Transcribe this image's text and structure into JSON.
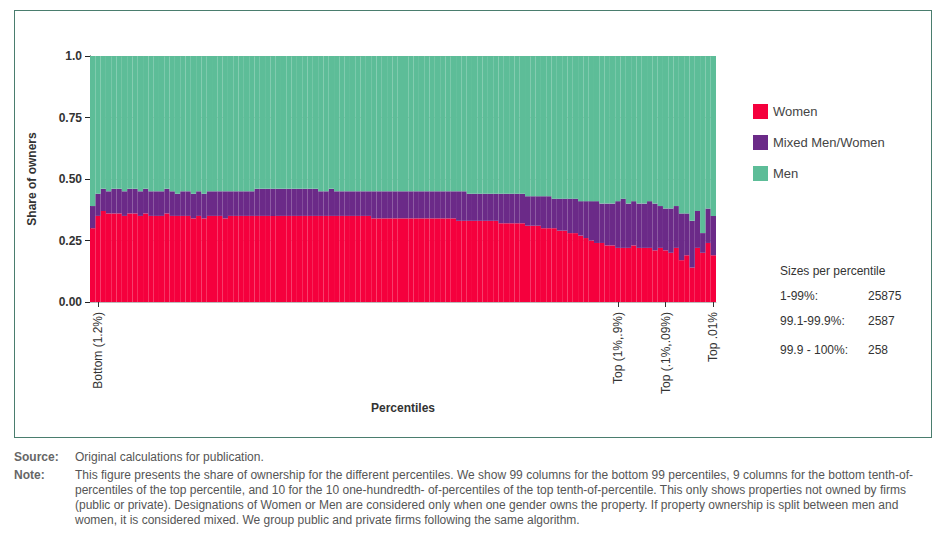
{
  "chart_data": {
    "type": "bar",
    "stacked": true,
    "y_label": "Share of owners",
    "x_label": "Percentiles",
    "categories": [
      null,
      "Bottom (1.2%)",
      null,
      null,
      null,
      null,
      null,
      null,
      null,
      null,
      null,
      null,
      null,
      null,
      null,
      null,
      null,
      null,
      null,
      null,
      null,
      null,
      null,
      null,
      null,
      null,
      null,
      null,
      null,
      null,
      null,
      null,
      null,
      null,
      null,
      null,
      null,
      null,
      null,
      null,
      null,
      null,
      null,
      null,
      null,
      null,
      null,
      null,
      null,
      null,
      null,
      null,
      null,
      null,
      null,
      null,
      null,
      null,
      null,
      null,
      null,
      null,
      null,
      null,
      null,
      null,
      null,
      null,
      null,
      null,
      null,
      null,
      null,
      null,
      null,
      null,
      null,
      null,
      null,
      null,
      null,
      null,
      null,
      null,
      null,
      null,
      null,
      null,
      null,
      null,
      null,
      null,
      null,
      null,
      null,
      null,
      null,
      null,
      null,
      "Top (1%,.9%)",
      null,
      null,
      null,
      null,
      null,
      null,
      null,
      null,
      "Top (.1%,.09%)",
      null,
      null,
      null,
      null,
      null,
      null,
      null,
      null,
      "Top .01%"
    ],
    "series": [
      {
        "name": "Women",
        "color": "#f5003d",
        "values": [
          0.3,
          0.35,
          0.37,
          0.36,
          0.36,
          0.36,
          0.35,
          0.36,
          0.36,
          0.35,
          0.36,
          0.35,
          0.35,
          0.35,
          0.36,
          0.35,
          0.35,
          0.35,
          0.35,
          0.34,
          0.35,
          0.34,
          0.35,
          0.35,
          0.35,
          0.34,
          0.35,
          0.35,
          0.35,
          0.35,
          0.35,
          0.35,
          0.35,
          0.35,
          0.35,
          0.35,
          0.35,
          0.35,
          0.35,
          0.35,
          0.35,
          0.35,
          0.35,
          0.35,
          0.35,
          0.35,
          0.35,
          0.35,
          0.35,
          0.35,
          0.35,
          0.35,
          0.35,
          0.34,
          0.34,
          0.34,
          0.34,
          0.34,
          0.34,
          0.34,
          0.34,
          0.34,
          0.34,
          0.34,
          0.34,
          0.34,
          0.34,
          0.34,
          0.34,
          0.33,
          0.33,
          0.33,
          0.33,
          0.33,
          0.33,
          0.33,
          0.33,
          0.32,
          0.32,
          0.32,
          0.32,
          0.32,
          0.31,
          0.31,
          0.31,
          0.3,
          0.3,
          0.3,
          0.29,
          0.29,
          0.28,
          0.28,
          0.27,
          0.26,
          0.25,
          0.24,
          0.24,
          0.23,
          0.23,
          0.22,
          0.22,
          0.22,
          0.23,
          0.22,
          0.22,
          0.22,
          0.21,
          0.22,
          0.21,
          0.2,
          0.22,
          0.17,
          0.19,
          0.14,
          0.22,
          0.2,
          0.24,
          0.19
        ]
      },
      {
        "name": "Mixed Men/Women",
        "color": "#6b2a88",
        "values": [
          0.09,
          0.09,
          0.09,
          0.09,
          0.1,
          0.1,
          0.1,
          0.1,
          0.1,
          0.1,
          0.1,
          0.1,
          0.1,
          0.1,
          0.1,
          0.1,
          0.09,
          0.1,
          0.1,
          0.1,
          0.1,
          0.1,
          0.1,
          0.1,
          0.1,
          0.11,
          0.1,
          0.1,
          0.1,
          0.1,
          0.1,
          0.11,
          0.11,
          0.11,
          0.11,
          0.11,
          0.11,
          0.11,
          0.11,
          0.11,
          0.11,
          0.11,
          0.11,
          0.1,
          0.1,
          0.11,
          0.1,
          0.1,
          0.1,
          0.1,
          0.1,
          0.1,
          0.1,
          0.11,
          0.11,
          0.11,
          0.11,
          0.11,
          0.11,
          0.11,
          0.11,
          0.11,
          0.11,
          0.11,
          0.11,
          0.11,
          0.11,
          0.11,
          0.11,
          0.12,
          0.12,
          0.11,
          0.11,
          0.11,
          0.11,
          0.11,
          0.11,
          0.12,
          0.12,
          0.12,
          0.12,
          0.12,
          0.12,
          0.12,
          0.12,
          0.13,
          0.13,
          0.12,
          0.13,
          0.13,
          0.14,
          0.14,
          0.14,
          0.15,
          0.16,
          0.17,
          0.16,
          0.17,
          0.17,
          0.19,
          0.2,
          0.18,
          0.18,
          0.18,
          0.18,
          0.19,
          0.19,
          0.17,
          0.17,
          0.18,
          0.17,
          0.19,
          0.17,
          0.19,
          0.15,
          0.08,
          0.14,
          0.16
        ]
      },
      {
        "name": "Men",
        "color": "#5dbd98",
        "values": [
          0.61,
          0.56,
          0.54,
          0.55,
          0.54,
          0.54,
          0.55,
          0.54,
          0.54,
          0.55,
          0.54,
          0.55,
          0.55,
          0.55,
          0.54,
          0.55,
          0.56,
          0.55,
          0.55,
          0.56,
          0.55,
          0.56,
          0.55,
          0.55,
          0.55,
          0.55,
          0.55,
          0.55,
          0.55,
          0.55,
          0.55,
          0.54,
          0.54,
          0.54,
          0.54,
          0.54,
          0.54,
          0.54,
          0.54,
          0.54,
          0.54,
          0.54,
          0.54,
          0.55,
          0.55,
          0.54,
          0.55,
          0.55,
          0.55,
          0.55,
          0.55,
          0.55,
          0.55,
          0.55,
          0.55,
          0.55,
          0.55,
          0.55,
          0.55,
          0.55,
          0.55,
          0.55,
          0.55,
          0.55,
          0.55,
          0.55,
          0.55,
          0.55,
          0.55,
          0.55,
          0.55,
          0.56,
          0.56,
          0.56,
          0.56,
          0.56,
          0.56,
          0.56,
          0.56,
          0.56,
          0.56,
          0.56,
          0.57,
          0.57,
          0.57,
          0.57,
          0.57,
          0.58,
          0.58,
          0.58,
          0.58,
          0.58,
          0.59,
          0.59,
          0.59,
          0.59,
          0.6,
          0.6,
          0.6,
          0.59,
          0.58,
          0.6,
          0.59,
          0.6,
          0.6,
          0.59,
          0.6,
          0.61,
          0.62,
          0.62,
          0.61,
          0.64,
          0.64,
          0.67,
          0.63,
          0.72,
          0.62,
          0.65
        ]
      }
    ],
    "ylim": [
      0,
      1
    ],
    "yticks": [
      {
        "value": 0,
        "label": "0.00"
      },
      0.25,
      {
        "value": 0.5,
        "label": "0.50"
      },
      0.75,
      {
        "value": 1,
        "label": "1.0"
      }
    ],
    "grid": true,
    "legend": "right",
    "sizes_title": "Sizes per percentile",
    "sizes": [
      {
        "label": "1-99%:",
        "value": 25875
      },
      {
        "label": "99.1-99.9%:",
        "value": 2587
      },
      {
        "label": "99.9 - 100%:",
        "value": 258
      }
    ]
  },
  "source": {
    "label": "Source:",
    "text": "Original calculations for publication."
  },
  "note": {
    "label": "Note:",
    "text": "This figure presents the share of ownership for the different percentiles. We show 99 columns for the bottom 99 percentiles, 9 columns for the bottom tenth-of-percentiles of the top percentile, and 10 for the 10 one-hundredth- of-percentiles of the top tenth-of-percentile. This only shows properties not owned by firms (public or private). Designations of Women or Men are considered only when one gender owns the property. If property ownership is split between men and women, it is considered mixed. We group public and private firms following the same algorithm."
  }
}
